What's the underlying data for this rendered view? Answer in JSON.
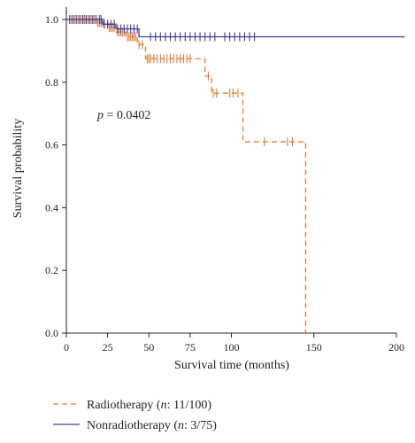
{
  "chart_data": {
    "type": "line",
    "subtype": "kaplan-meier",
    "xlabel": "Survival time (months)",
    "ylabel": "Survival probability",
    "xlim": [
      0,
      200
    ],
    "ylim": [
      0,
      1.0
    ],
    "xticks": [
      "0",
      "25",
      "50",
      "75",
      "100",
      "150",
      "200"
    ],
    "xtick_values": [
      0,
      25,
      50,
      75,
      100,
      150,
      200
    ],
    "yticks": [
      "0.0",
      "0.2",
      "0.4",
      "0.6",
      "0.8",
      "1.0"
    ],
    "ytick_values": [
      0,
      0.2,
      0.4,
      0.6,
      0.8,
      1.0
    ],
    "annotation": {
      "prefix": "p",
      "text": " = 0.0402"
    },
    "grid": false,
    "legend": "bottom-left",
    "series": [
      {
        "name": "Radiotherapy",
        "legend_prefix": "Radiotherapy (",
        "legend_n": "n",
        "legend_suffix": ": 11/100)",
        "color": "#e07b39",
        "dash": "dashed",
        "steps": [
          [
            0,
            1.0
          ],
          [
            18,
            0.99
          ],
          [
            25,
            0.975
          ],
          [
            30,
            0.96
          ],
          [
            36,
            0.945
          ],
          [
            43,
            0.92
          ],
          [
            48,
            0.875
          ],
          [
            84,
            0.82
          ],
          [
            88,
            0.765
          ],
          [
            107,
            0.61
          ],
          [
            145,
            0.61
          ],
          [
            145,
            0.0
          ]
        ],
        "censored": [
          [
            3,
            1.0
          ],
          [
            5,
            1.0
          ],
          [
            7,
            1.0
          ],
          [
            9,
            1.0
          ],
          [
            10,
            1.0
          ],
          [
            11,
            1.0
          ],
          [
            12,
            1.0
          ],
          [
            13,
            1.0
          ],
          [
            14,
            1.0
          ],
          [
            15,
            1.0
          ],
          [
            16,
            1.0
          ],
          [
            17,
            1.0
          ],
          [
            19,
            0.99
          ],
          [
            20,
            0.99
          ],
          [
            21,
            0.99
          ],
          [
            22,
            0.99
          ],
          [
            23,
            0.99
          ],
          [
            26,
            0.975
          ],
          [
            27,
            0.975
          ],
          [
            28,
            0.975
          ],
          [
            29,
            0.975
          ],
          [
            31,
            0.96
          ],
          [
            32,
            0.96
          ],
          [
            33,
            0.96
          ],
          [
            34,
            0.96
          ],
          [
            35,
            0.96
          ],
          [
            37,
            0.945
          ],
          [
            38,
            0.945
          ],
          [
            39,
            0.945
          ],
          [
            40,
            0.945
          ],
          [
            41,
            0.945
          ],
          [
            42,
            0.945
          ],
          [
            44,
            0.92
          ],
          [
            46,
            0.92
          ],
          [
            49,
            0.875
          ],
          [
            50,
            0.875
          ],
          [
            51,
            0.875
          ],
          [
            53,
            0.875
          ],
          [
            55,
            0.875
          ],
          [
            57,
            0.875
          ],
          [
            59,
            0.875
          ],
          [
            61,
            0.875
          ],
          [
            63,
            0.875
          ],
          [
            65,
            0.875
          ],
          [
            67,
            0.875
          ],
          [
            69,
            0.875
          ],
          [
            71,
            0.875
          ],
          [
            73,
            0.875
          ],
          [
            75,
            0.875
          ],
          [
            86,
            0.82
          ],
          [
            89,
            0.765
          ],
          [
            91,
            0.765
          ],
          [
            99,
            0.765
          ],
          [
            101,
            0.765
          ],
          [
            104,
            0.765
          ],
          [
            120,
            0.61
          ],
          [
            134,
            0.61
          ],
          [
            137,
            0.61
          ]
        ]
      },
      {
        "name": "Nonradiotherapy",
        "legend_prefix": "Nonradiotherapy (",
        "legend_n": "n",
        "legend_suffix": ": 3/75)",
        "color": "#3f3f96",
        "dash": "solid",
        "steps": [
          [
            0,
            1.0
          ],
          [
            22,
            0.985
          ],
          [
            30,
            0.97
          ],
          [
            44,
            0.945
          ],
          [
            205,
            0.945
          ]
        ],
        "censored": [
          [
            2,
            1.0
          ],
          [
            4,
            1.0
          ],
          [
            6,
            1.0
          ],
          [
            8,
            1.0
          ],
          [
            10,
            1.0
          ],
          [
            12,
            1.0
          ],
          [
            14,
            1.0
          ],
          [
            16,
            1.0
          ],
          [
            18,
            1.0
          ],
          [
            20,
            1.0
          ],
          [
            21,
            1.0
          ],
          [
            23,
            0.985
          ],
          [
            25,
            0.985
          ],
          [
            27,
            0.985
          ],
          [
            29,
            0.985
          ],
          [
            31,
            0.97
          ],
          [
            33,
            0.97
          ],
          [
            35,
            0.97
          ],
          [
            37,
            0.97
          ],
          [
            39,
            0.97
          ],
          [
            41,
            0.97
          ],
          [
            43,
            0.97
          ],
          [
            51,
            0.945
          ],
          [
            54,
            0.945
          ],
          [
            57,
            0.945
          ],
          [
            60,
            0.945
          ],
          [
            63,
            0.945
          ],
          [
            66,
            0.945
          ],
          [
            69,
            0.945
          ],
          [
            72,
            0.945
          ],
          [
            75,
            0.945
          ],
          [
            78,
            0.945
          ],
          [
            81,
            0.945
          ],
          [
            84,
            0.945
          ],
          [
            87,
            0.945
          ],
          [
            90,
            0.945
          ],
          [
            96,
            0.945
          ],
          [
            99,
            0.945
          ],
          [
            102,
            0.945
          ],
          [
            105,
            0.945
          ],
          [
            108,
            0.945
          ],
          [
            111,
            0.945
          ],
          [
            114,
            0.945
          ]
        ]
      }
    ]
  }
}
